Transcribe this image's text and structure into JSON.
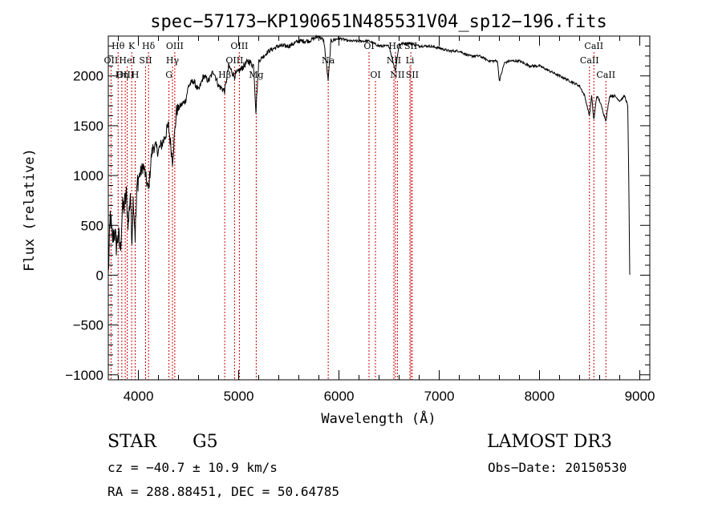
{
  "chart_data": {
    "type": "line",
    "title": "spec−57173−KP190651N485531V04_sp12−196.fits",
    "xlabel": "Wavelength (Å)",
    "ylabel": "Flux (relative)",
    "xlim": [
      3700,
      9100
    ],
    "ylim": [
      -1050,
      2400
    ],
    "x_ticks": [
      4000,
      5000,
      6000,
      7000,
      8000,
      9000
    ],
    "x_tick_labels": [
      "4000",
      "5000",
      "6000",
      "7000",
      "8000",
      "9000"
    ],
    "y_ticks": [
      -1000,
      -500,
      0,
      500,
      1000,
      1500,
      2000
    ],
    "y_tick_labels": [
      "−1000",
      "−500",
      "0",
      "500",
      "1000",
      "1500",
      "2000"
    ],
    "series": [
      {
        "name": "flux",
        "x": [
          3700,
          3720,
          3740,
          3760,
          3780,
          3800,
          3820,
          3840,
          3860,
          3880,
          3900,
          3920,
          3933,
          3950,
          3968,
          3990,
          4010,
          4050,
          4101,
          4130,
          4150,
          4200,
          4250,
          4300,
          4340,
          4380,
          4420,
          4470,
          4500,
          4550,
          4600,
          4650,
          4700,
          4750,
          4800,
          4861,
          4900,
          4957,
          5007,
          5050,
          5100,
          5150,
          5172,
          5200,
          5250,
          5300,
          5400,
          5500,
          5600,
          5700,
          5800,
          5850,
          5893,
          5920,
          6000,
          6100,
          6200,
          6300,
          6400,
          6500,
          6563,
          6600,
          6700,
          6800,
          6900,
          7000,
          7100,
          7200,
          7300,
          7400,
          7500,
          7580,
          7600,
          7650,
          7700,
          7800,
          7900,
          8000,
          8100,
          8200,
          8300,
          8400,
          8450,
          8498,
          8520,
          8542,
          8570,
          8600,
          8662,
          8700,
          8750,
          8800,
          8850,
          8880,
          8890,
          8900
        ],
        "y": [
          0,
          600,
          350,
          450,
          300,
          400,
          250,
          650,
          700,
          800,
          500,
          850,
          350,
          800,
          400,
          950,
          1000,
          1100,
          850,
          1200,
          1300,
          1250,
          1350,
          1500,
          1150,
          1650,
          1700,
          1750,
          1900,
          1950,
          1850,
          2000,
          1950,
          2050,
          1900,
          1850,
          2100,
          2000,
          2050,
          2100,
          2150,
          2100,
          1650,
          2150,
          2200,
          2250,
          2300,
          2300,
          2350,
          2350,
          2400,
          2350,
          1950,
          2350,
          2380,
          2350,
          2350,
          2350,
          2300,
          2300,
          2050,
          2320,
          2330,
          2300,
          2300,
          2280,
          2250,
          2250,
          2200,
          2200,
          2150,
          2150,
          1950,
          2130,
          2150,
          2150,
          2100,
          2100,
          2050,
          2000,
          1950,
          1900,
          1800,
          1600,
          1800,
          1550,
          1800,
          1750,
          1550,
          1800,
          1800,
          1750,
          1800,
          1700,
          1000,
          0
        ]
      }
    ],
    "line_markers": [
      {
        "label": "Hθ",
        "x": 3798,
        "row": 0
      },
      {
        "label": "OII",
        "x": 3727,
        "row": 1
      },
      {
        "label": "OIII",
        "x": 3869,
        "row": 2
      },
      {
        "label": "K",
        "x": 3933,
        "row": 0
      },
      {
        "label": "HeI",
        "x": 3889,
        "row": 1
      },
      {
        "label": "Hη",
        "x": 3835,
        "row": 2
      },
      {
        "label": "H",
        "x": 3968,
        "row": 2
      },
      {
        "label": "Hδ",
        "x": 4101,
        "row": 0
      },
      {
        "label": "SII",
        "x": 4072,
        "row": 1
      },
      {
        "label": "OIII",
        "x": 4363,
        "row": 0
      },
      {
        "label": "Hγ",
        "x": 4340,
        "row": 1
      },
      {
        "label": "G",
        "x": 4305,
        "row": 2
      },
      {
        "label": "Hβ",
        "x": 4861,
        "row": 2
      },
      {
        "label": "OIII",
        "x": 5007,
        "row": 0
      },
      {
        "label": "OIII",
        "x": 4959,
        "row": 1
      },
      {
        "label": "Mg",
        "x": 5175,
        "row": 2
      },
      {
        "label": "Na",
        "x": 5893,
        "row": 1
      },
      {
        "label": "OI",
        "x": 6300,
        "row": 0
      },
      {
        "label": "OI",
        "x": 6364,
        "row": 2
      },
      {
        "label": "Hα",
        "x": 6563,
        "row": 0
      },
      {
        "label": "NII",
        "x": 6548,
        "row": 1
      },
      {
        "label": "NII",
        "x": 6583,
        "row": 2
      },
      {
        "label": "SII",
        "x": 6717,
        "row": 0
      },
      {
        "label": "Li",
        "x": 6708,
        "row": 1
      },
      {
        "label": "SII",
        "x": 6731,
        "row": 2
      },
      {
        "label": "CaII",
        "x": 8542,
        "row": 0
      },
      {
        "label": "CaII",
        "x": 8498,
        "row": 1
      },
      {
        "label": "CaII",
        "x": 8662,
        "row": 2
      }
    ],
    "colors": {
      "line": "#000000",
      "markers": "#cc0000",
      "axes": "#000000"
    }
  },
  "info": {
    "class_label": "STAR",
    "subclass": "G5",
    "survey": "LAMOST DR3",
    "redshift": "cz = −40.7 ± 10.9 km/s",
    "obs_date": "Obs−Date: 20150530",
    "coords": "RA = 288.88451, DEC =  50.64785"
  }
}
